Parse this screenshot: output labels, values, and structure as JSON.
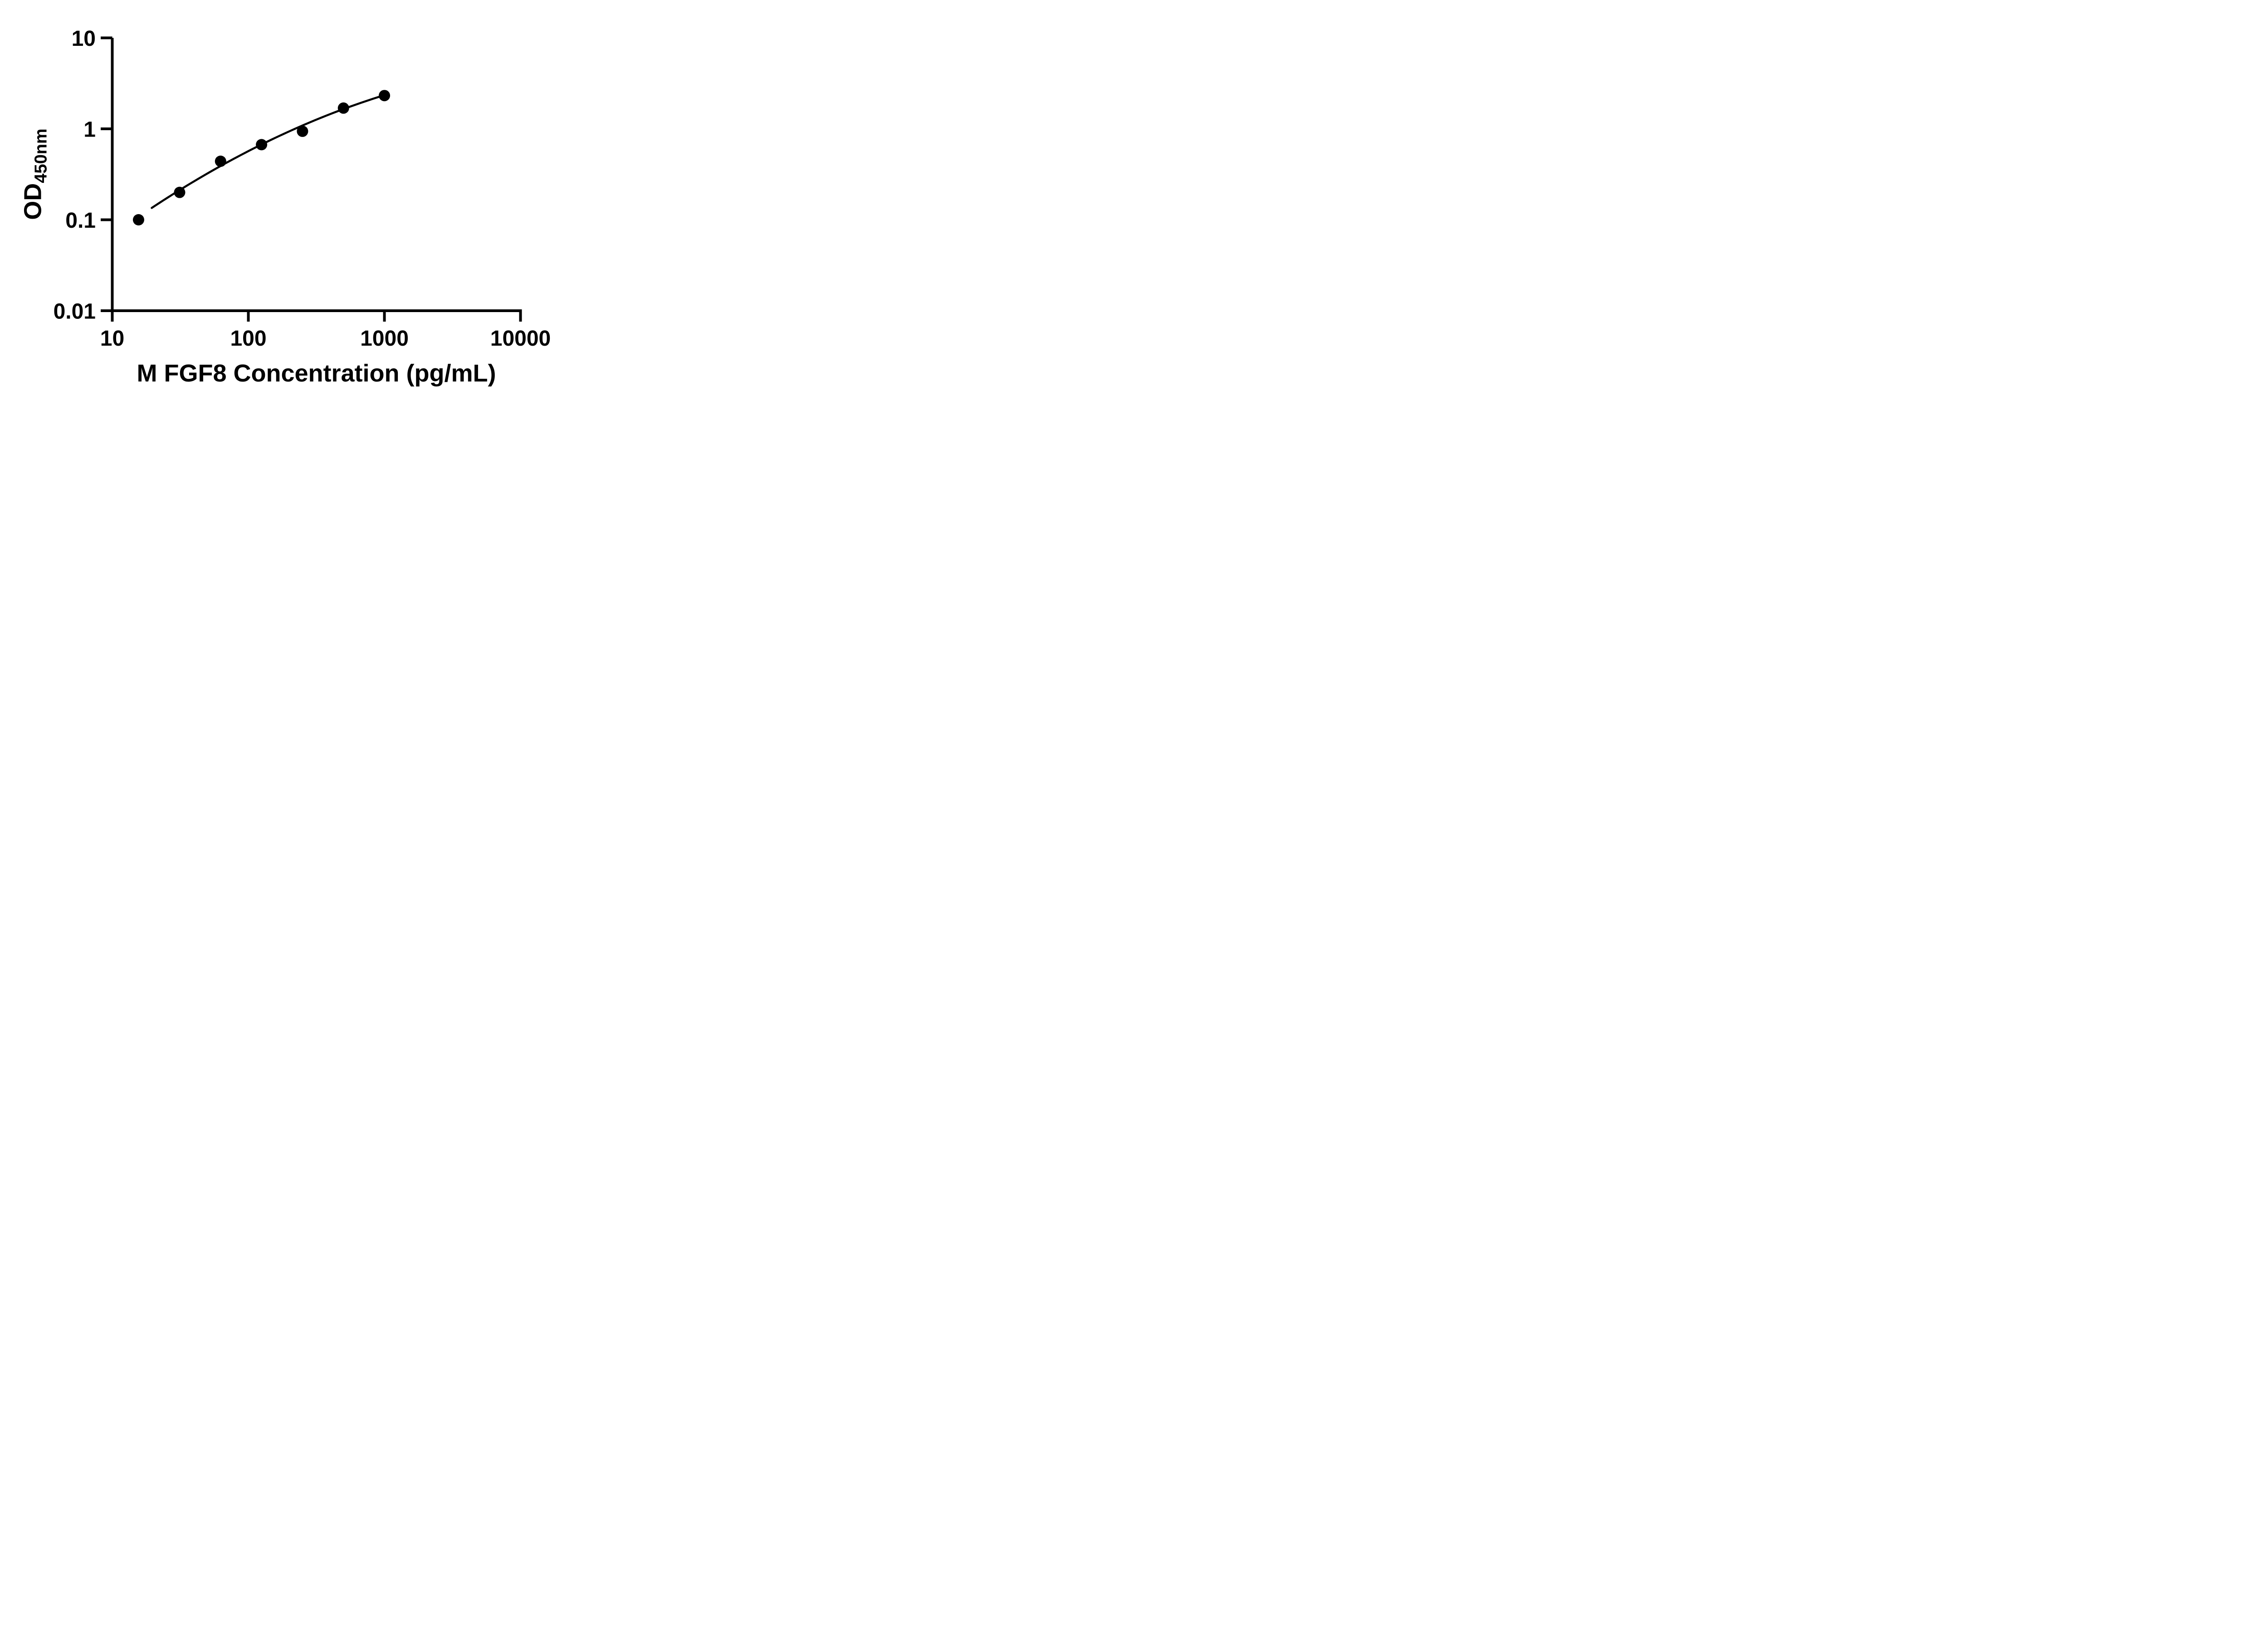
{
  "figure": {
    "background_color": "#ffffff",
    "foreground_color": "#000000"
  },
  "chart_data": {
    "type": "scatter",
    "subtype": "ELISA standard curve with fitted line",
    "title": "",
    "xlabel": "M FGF8 Concentration (pg/mL)",
    "ylabel_main": "OD",
    "ylabel_subscript": "450nm",
    "log_x": true,
    "log_y": true,
    "xlim": [
      10,
      10000
    ],
    "ylim": [
      0.01,
      10
    ],
    "grid": false,
    "legend": "none",
    "xticks": {
      "values": [
        10,
        100,
        1000,
        10000
      ],
      "labels": [
        "10",
        "100",
        "1000",
        "10000"
      ]
    },
    "yticks": {
      "values": [
        10,
        1,
        0.1,
        0.01
      ],
      "labels": [
        "10",
        "1",
        "0.1",
        "0.01"
      ]
    },
    "series": [
      {
        "name": "standard-points",
        "marker": "filled-circle",
        "color": "#000000",
        "points": [
          {
            "x": 15.6,
            "y": 0.1
          },
          {
            "x": 31.25,
            "y": 0.2
          },
          {
            "x": 62.5,
            "y": 0.44
          },
          {
            "x": 125,
            "y": 0.67
          },
          {
            "x": 250,
            "y": 0.94
          },
          {
            "x": 500,
            "y": 1.69
          },
          {
            "x": 1000,
            "y": 2.32
          }
        ]
      }
    ],
    "fit_curve": {
      "space": "log10x-log10y",
      "model": "quadratic v = a + b*u + c*u^2",
      "a": -2.4027,
      "b": 1.3875,
      "c": -0.1544,
      "u_min": 1.29,
      "u_max": 3.0,
      "color": "#000000"
    }
  }
}
